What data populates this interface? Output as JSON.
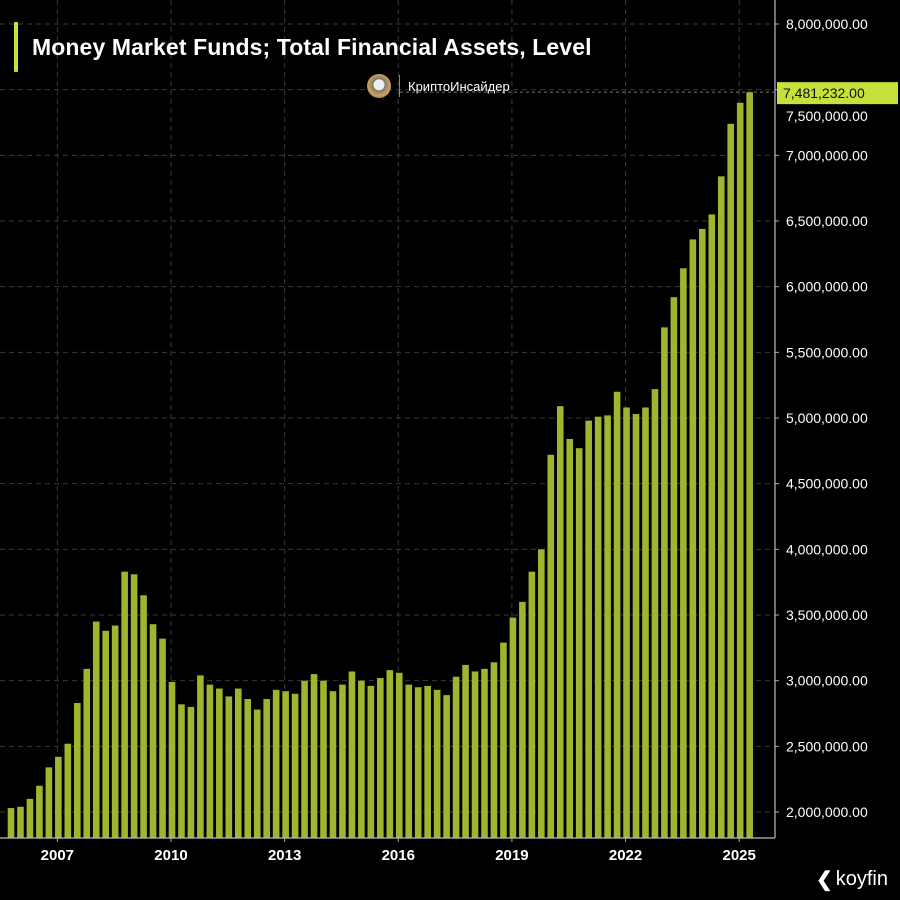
{
  "chart_data": {
    "type": "bar",
    "title": "Money Market Funds; Total Financial Assets, Level",
    "frequency": "quarterly",
    "xlabel": "",
    "ylabel": "",
    "x_tick_labels": [
      "2007",
      "2010",
      "2013",
      "2016",
      "2019",
      "2022",
      "2025"
    ],
    "y_tick_labels": [
      "2,000,000.00",
      "2,500,000.00",
      "3,000,000.00",
      "3,500,000.00",
      "4,000,000.00",
      "4,500,000.00",
      "5,000,000.00",
      "5,500,000.00",
      "6,000,000.00",
      "6,500,000.00",
      "7,000,000.00",
      "7,500,000.00",
      "8,000,000.00"
    ],
    "ylim": [
      2000000,
      8000000
    ],
    "xlim": [
      2005.75,
      2025.75
    ],
    "first_period": 2005.75,
    "grid": true,
    "last_value_label": "7,481,232.00",
    "values": [
      2030000,
      2040000,
      2100000,
      2200000,
      2340000,
      2420000,
      2520000,
      2830000,
      3090000,
      3450000,
      3380000,
      3420000,
      3830000,
      3810000,
      3650000,
      3430000,
      3320000,
      2990000,
      2820000,
      2800000,
      3040000,
      2970000,
      2940000,
      2880000,
      2940000,
      2860000,
      2780000,
      2860000,
      2930000,
      2920000,
      2900000,
      3000000,
      3050000,
      3000000,
      2920000,
      2970000,
      3070000,
      3000000,
      2960000,
      3020000,
      3080000,
      3060000,
      2970000,
      2950000,
      2960000,
      2930000,
      2890000,
      3030000,
      3120000,
      3070000,
      3090000,
      3140000,
      3290000,
      3480000,
      3600000,
      3830000,
      4000000,
      4720000,
      5090000,
      4840000,
      4770000,
      4980000,
      5010000,
      5020000,
      5200000,
      5080000,
      5030000,
      5080000,
      5220000,
      5690000,
      5920000,
      6140000,
      6360000,
      6440000,
      6550000,
      6840000,
      7240000,
      7400000,
      7481232
    ]
  },
  "colors": {
    "bar": "#9db52f",
    "accent": "#c8e03c",
    "grid": "#3a3a3a",
    "background": "#000000"
  },
  "watermark": {
    "text": "КриптоИнсайдер"
  },
  "brand": {
    "name": "koyfin",
    "icon": "koyfin-logo-icon"
  }
}
